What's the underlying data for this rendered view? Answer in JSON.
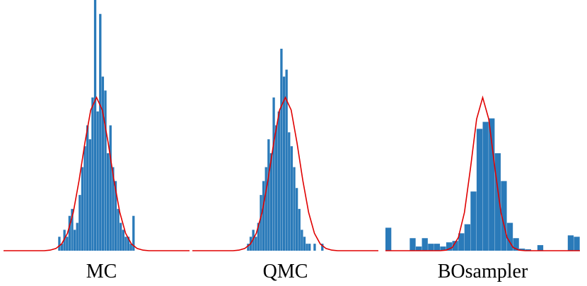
{
  "chart_data": [
    {
      "type": "histogram",
      "title": "MC",
      "color": "#2a7ab9",
      "line_color": "#e00000",
      "xlim": [
        -4,
        4
      ],
      "ylim": [
        0,
        36
      ],
      "bins": [
        -1.65,
        -1.54,
        -1.43,
        -1.32,
        -1.21,
        -1.1,
        -0.99,
        -0.88,
        -0.77,
        -0.66,
        -0.55,
        -0.44,
        -0.33,
        -0.22,
        -0.11,
        0,
        0.11,
        0.22,
        0.33,
        0.44,
        0.55,
        0.66,
        0.77,
        0.88,
        0.99,
        1.1,
        1.21,
        1.32,
        1.43,
        1.54,
        1.65
      ],
      "values": [
        2,
        1,
        3,
        2,
        5,
        6,
        3,
        4,
        8,
        12,
        15,
        18,
        16,
        22,
        36,
        20,
        34,
        25,
        23,
        14,
        18,
        12,
        10,
        6,
        4,
        3,
        2,
        2,
        1,
        5
      ],
      "curve": {
        "x": [
          -4,
          -3.75,
          -3.5,
          -3.25,
          -3,
          -2.75,
          -2.5,
          -2.25,
          -2,
          -1.75,
          -1.5,
          -1.25,
          -1,
          -0.75,
          -0.5,
          -0.25,
          0,
          0.25,
          0.5,
          0.75,
          1,
          1.25,
          1.5,
          1.75,
          2,
          2.25,
          2.5,
          2.75,
          3,
          3.25,
          3.5,
          3.75,
          4
        ],
        "values": [
          0,
          0,
          0,
          0,
          0,
          0,
          0,
          0,
          0.08,
          0.31,
          0.97,
          2.5,
          5.5,
          10.1,
          15.5,
          20.2,
          22,
          20.2,
          15.5,
          10.1,
          5.5,
          2.5,
          0.97,
          0.31,
          0.08,
          0,
          0,
          0,
          0,
          0,
          0,
          0,
          0
        ]
      }
    },
    {
      "type": "histogram",
      "title": "QMC",
      "color": "#2a7ab9",
      "line_color": "#e00000",
      "xlim": [
        -4,
        4
      ],
      "ylim": [
        0,
        36
      ],
      "bins": [
        -1.65,
        -1.54,
        -1.43,
        -1.32,
        -1.21,
        -1.1,
        -0.99,
        -0.88,
        -0.77,
        -0.66,
        -0.55,
        -0.44,
        -0.33,
        -0.22,
        -0.11,
        0,
        0.11,
        0.22,
        0.33,
        0.44,
        0.55,
        0.66,
        0.77,
        0.88,
        0.99,
        1.1,
        1.21,
        1.32,
        1.43,
        1.54,
        1.65
      ],
      "values": [
        1,
        2,
        3,
        2,
        4,
        8,
        10,
        12,
        16,
        14,
        22,
        18,
        20,
        29,
        25,
        26,
        17,
        15,
        12,
        9,
        6,
        3,
        2,
        1,
        1,
        0,
        1,
        0,
        0,
        1
      ],
      "curve": {
        "x": [
          -4,
          -3.75,
          -3.5,
          -3.25,
          -3,
          -2.75,
          -2.5,
          -2.25,
          -2,
          -1.75,
          -1.5,
          -1.25,
          -1,
          -0.75,
          -0.5,
          -0.25,
          0,
          0.25,
          0.5,
          0.75,
          1,
          1.25,
          1.5,
          1.75,
          2,
          2.25,
          2.5,
          2.75,
          3,
          3.25,
          3.5,
          3.75,
          4
        ],
        "values": [
          0,
          0,
          0,
          0,
          0,
          0,
          0,
          0,
          0.08,
          0.31,
          0.97,
          2.5,
          5.5,
          10.1,
          15.5,
          20.2,
          22,
          20.2,
          15.5,
          10.1,
          5.5,
          2.5,
          0.97,
          0.31,
          0.08,
          0,
          0,
          0,
          0,
          0,
          0,
          0,
          0
        ]
      }
    },
    {
      "type": "histogram",
      "title": "BOsampler",
      "color": "#2a7ab9",
      "line_color": "#e00000",
      "xlim": [
        -4,
        4
      ],
      "ylim": [
        0,
        36
      ],
      "bins": [
        -4,
        -3.75,
        -3.5,
        -3.25,
        -3,
        -2.75,
        -2.5,
        -2.25,
        -2,
        -1.75,
        -1.5,
        -1.25,
        -1,
        -0.75,
        -0.5,
        -0.25,
        0,
        0.25,
        0.5,
        0.75,
        1,
        1.25,
        1.5,
        1.75,
        2,
        2.25,
        2.5,
        2.75,
        3,
        3.25,
        3.5,
        3.75,
        4
      ],
      "values": [
        3.3,
        0,
        0,
        0,
        1.8,
        0.6,
        1.8,
        1.0,
        1.0,
        0.6,
        1.2,
        1.4,
        2.5,
        3.8,
        8.5,
        17.5,
        18.5,
        19,
        14,
        10,
        4,
        1.8,
        0.3,
        0.2,
        0,
        0.8,
        0,
        0,
        0,
        0,
        2.2,
        2.0
      ],
      "curve": {
        "x": [
          -4,
          -3.75,
          -3.5,
          -3.25,
          -3,
          -2.75,
          -2.5,
          -2.25,
          -2,
          -1.75,
          -1.5,
          -1.25,
          -1,
          -0.75,
          -0.5,
          -0.25,
          0,
          0.25,
          0.5,
          0.75,
          1,
          1.25,
          1.5,
          1.75,
          2,
          2.25,
          2.5,
          2.75,
          3,
          3.25,
          3.5,
          3.75,
          4
        ],
        "values": [
          0,
          0,
          0,
          0,
          0,
          0,
          0,
          0,
          0,
          0,
          0.08,
          0.46,
          1.9,
          5.5,
          11.9,
          18.9,
          22,
          18.9,
          11.9,
          5.5,
          1.9,
          0.46,
          0.08,
          0,
          0,
          0,
          0,
          0,
          0,
          0,
          0,
          0,
          0
        ]
      }
    }
  ]
}
